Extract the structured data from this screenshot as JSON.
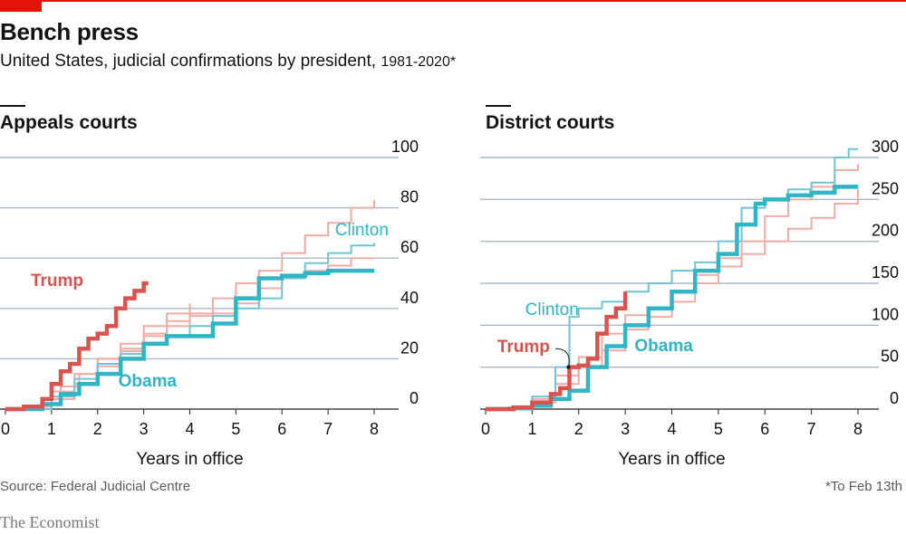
{
  "header": {
    "title": "Bench press",
    "subtitle": "United States, judicial confirmations by president,",
    "subtitle_years": "1981-2020*"
  },
  "colors": {
    "trump": "#d9534f",
    "obama": "#2fb5c4",
    "clinton": "#6fc5d2",
    "faint_red": "#f0aba6",
    "faint_blue": "#a9dce4",
    "grid": "#a9b9c9",
    "brand_red": "#e3120b"
  },
  "chart_data": [
    {
      "type": "line",
      "title": "Appeals courts",
      "xlabel": "Years in office",
      "ylabel": "",
      "xlim": [
        0,
        8
      ],
      "ylim": [
        0,
        100
      ],
      "xticks": [
        0,
        1,
        2,
        3,
        4,
        5,
        6,
        7,
        8
      ],
      "yticks": [
        0,
        20,
        40,
        60,
        80,
        100
      ],
      "series": [
        {
          "name": "",
          "role": "faint-red",
          "x": [
            0,
            0.4,
            0.8,
            1.2,
            1.6,
            2.0,
            2.5,
            3.0,
            3.5,
            4.0,
            4.5,
            5.0,
            5.5,
            6.0,
            6.5,
            7.0,
            7.5,
            8.0
          ],
          "y": [
            0,
            1,
            4,
            9,
            14,
            20,
            24,
            30,
            33,
            38,
            44,
            50,
            55,
            62,
            69,
            74,
            80,
            83
          ]
        },
        {
          "name": "",
          "role": "faint-red",
          "x": [
            0,
            0.5,
            1.0,
            1.5,
            2.0,
            2.5,
            3.0,
            3.5,
            4.0,
            4.5,
            5.0,
            5.5,
            6.0,
            6.5,
            7.0,
            7.5,
            8.0
          ],
          "y": [
            0,
            1,
            4,
            10,
            17,
            23,
            29,
            35,
            37,
            38,
            42,
            48,
            52,
            55,
            57,
            60,
            60
          ]
        },
        {
          "name": "",
          "role": "faint-red",
          "x": [
            0,
            0.6,
            1.0,
            1.5,
            2.0,
            2.5,
            3.0,
            3.5,
            4.0
          ],
          "y": [
            0,
            1,
            7,
            14,
            20,
            26,
            33,
            38,
            42
          ]
        },
        {
          "name": "Clinton",
          "role": "clinton",
          "x": [
            0,
            0.5,
            1.0,
            1.5,
            2.0,
            2.5,
            3.0,
            3.5,
            4.0,
            4.5,
            5.0,
            5.5,
            6.0,
            6.5,
            7.0,
            7.5,
            8.0
          ],
          "y": [
            0,
            0,
            5,
            12,
            18,
            22,
            26,
            29,
            33,
            37,
            40,
            44,
            52,
            58,
            62,
            65,
            66
          ]
        },
        {
          "name": "Obama",
          "role": "obama",
          "x": [
            0,
            0.5,
            0.8,
            1.2,
            1.6,
            2.0,
            2.5,
            3.0,
            3.5,
            4.0,
            4.5,
            5.0,
            5.5,
            6.0,
            6.5,
            7.0,
            7.5,
            8.0
          ],
          "y": [
            0,
            0,
            2,
            6,
            10,
            14,
            20,
            26,
            29,
            29,
            34,
            44,
            52,
            53,
            54,
            55,
            55,
            55
          ]
        },
        {
          "name": "Trump",
          "role": "trump",
          "x": [
            0,
            0.4,
            0.8,
            1.0,
            1.2,
            1.4,
            1.6,
            1.8,
            2.0,
            2.2,
            2.4,
            2.6,
            2.8,
            3.0,
            3.1
          ],
          "y": [
            0,
            1,
            4,
            10,
            15,
            18,
            24,
            28,
            30,
            33,
            40,
            44,
            47,
            50,
            50
          ]
        }
      ],
      "labels": [
        {
          "text": "Trump",
          "role": "trump",
          "x": 0.55,
          "y": 49
        },
        {
          "text": "Obama",
          "role": "obama",
          "x": 2.45,
          "y": 9
        },
        {
          "text": "Clinton",
          "role": "clinton",
          "x": 7.15,
          "y": 69
        }
      ]
    },
    {
      "type": "line",
      "title": "District courts",
      "xlabel": "Years in office",
      "ylabel": "",
      "xlim": [
        0,
        8
      ],
      "ylim": [
        0,
        300
      ],
      "xticks": [
        0,
        1,
        2,
        3,
        4,
        5,
        6,
        7,
        8
      ],
      "yticks": [
        0,
        50,
        100,
        150,
        200,
        250,
        300
      ],
      "series": [
        {
          "name": "",
          "role": "faint-red",
          "x": [
            0,
            0.5,
            1.0,
            1.5,
            2.0,
            2.5,
            3.0,
            3.5,
            4.0,
            4.5,
            5.0,
            5.5,
            6.0,
            6.5,
            7.0,
            7.5,
            8.0
          ],
          "y": [
            0,
            2,
            12,
            40,
            62,
            90,
            112,
            120,
            140,
            160,
            180,
            200,
            230,
            250,
            265,
            285,
            292
          ]
        },
        {
          "name": "",
          "role": "faint-red",
          "x": [
            0,
            0.5,
            1.0,
            1.5,
            2.0,
            2.5,
            3.0,
            3.5,
            4.0,
            4.5,
            5.0,
            5.5,
            6.0,
            6.5,
            7.0,
            7.5,
            8.0
          ],
          "y": [
            0,
            1,
            8,
            30,
            50,
            70,
            95,
            110,
            128,
            150,
            170,
            185,
            200,
            215,
            228,
            245,
            262
          ]
        },
        {
          "name": "Clinton",
          "role": "clinton",
          "x": [
            0,
            0.5,
            1.0,
            1.5,
            1.8,
            2.0,
            2.5,
            3.0,
            3.5,
            4.0,
            4.5,
            5.0,
            5.5,
            6.0,
            6.5,
            7.0,
            7.5,
            7.8,
            8.0
          ],
          "y": [
            0,
            2,
            15,
            50,
            110,
            120,
            128,
            140,
            150,
            165,
            175,
            200,
            240,
            250,
            262,
            270,
            300,
            310,
            310
          ]
        },
        {
          "name": "Obama",
          "role": "obama",
          "x": [
            0,
            0.6,
            1.0,
            1.4,
            1.8,
            2.2,
            2.6,
            3.0,
            3.5,
            4.0,
            4.5,
            5.0,
            5.4,
            5.8,
            6.0,
            6.5,
            7.0,
            7.5,
            8.0
          ],
          "y": [
            0,
            1,
            4,
            12,
            22,
            50,
            75,
            100,
            120,
            140,
            165,
            185,
            220,
            245,
            250,
            255,
            258,
            265,
            265
          ]
        },
        {
          "name": "Trump",
          "role": "trump",
          "x": [
            0,
            0.6,
            1.0,
            1.4,
            1.6,
            1.8,
            2.0,
            2.2,
            2.4,
            2.6,
            2.8,
            3.0
          ],
          "y": [
            0,
            2,
            8,
            18,
            25,
            50,
            52,
            60,
            90,
            110,
            120,
            140
          ]
        }
      ],
      "labels": [
        {
          "text": "Clinton",
          "role": "clinton",
          "x": 0.85,
          "y": 112
        },
        {
          "text": "Trump",
          "role": "trump",
          "x": 0.25,
          "y": 68
        },
        {
          "text": "Obama",
          "role": "obama",
          "x": 3.2,
          "y": 69
        }
      ]
    }
  ],
  "footer": {
    "source": "Source: Federal Judicial Centre",
    "footnote": "*To Feb 13th",
    "brand": "The Economist"
  }
}
